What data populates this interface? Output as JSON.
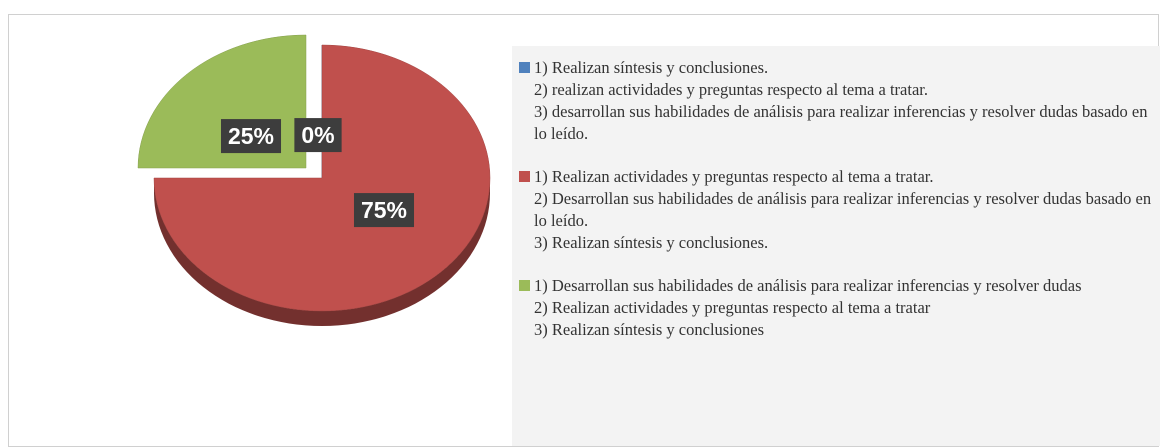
{
  "chart_data": {
    "type": "pie",
    "categories": [
      "1) Realizan síntesis y conclusiones.\n2) realizan actividades y preguntas respecto al tema a tratar.\n3) desarrollan sus habilidades de análisis para realizar inferencias y resolver dudas basado en lo leído.",
      "1) Realizan actividades y preguntas respecto al tema a tratar.\n2) Desarrollan sus habilidades de análisis para realizar inferencias y resolver dudas basado en lo leído.\n3) Realizan síntesis y conclusiones.",
      "1) Desarrollan  sus habilidades de análisis para realizar inferencias y resolver dudas\n2) Realizan actividades y preguntas respecto al tema a tratar\n3) Realizan síntesis y conclusiones"
    ],
    "values": [
      0,
      75,
      25
    ],
    "value_labels": [
      "0%",
      "75%",
      "25%"
    ],
    "colors": [
      "#4f81bd",
      "#c0504d",
      "#9bbb59"
    ],
    "legend": "right"
  }
}
